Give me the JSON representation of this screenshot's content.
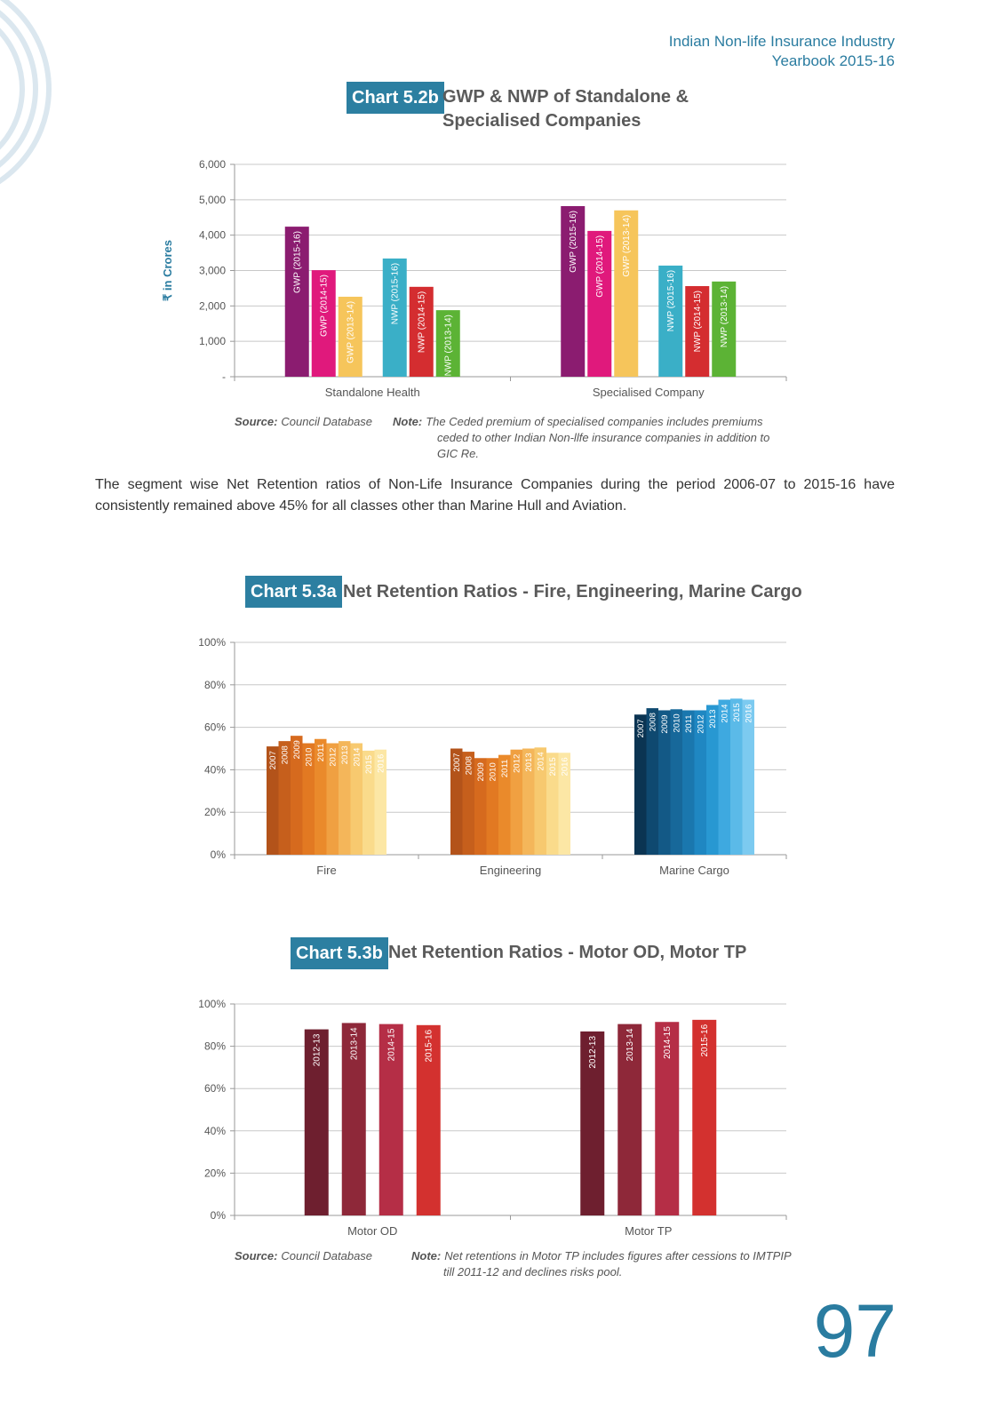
{
  "header": {
    "line1": "Indian Non-life Insurance Industry",
    "line2": "Yearbook 2015-16"
  },
  "paragraph": "The segment wise Net Retention ratios of Non-Life Insurance Companies during the period 2006-07 to 2015-16 have consistently remained above 45% for all classes other than Marine Hull and Aviation.",
  "page_number": "97",
  "chart_data": [
    {
      "type": "bar",
      "label": "Chart 5.2b",
      "title": "GWP & NWP of Standalone & Specialised Companies",
      "ylabel": "₹ in Crores",
      "categories": [
        "Standalone Health",
        "Specialised Company"
      ],
      "series": [
        {
          "name": "GWP (2015-16)",
          "color": "#8b1c70",
          "values": [
            4240,
            4820
          ]
        },
        {
          "name": "GWP (2014-15)",
          "color": "#e0197c",
          "values": [
            3010,
            4120
          ]
        },
        {
          "name": "GWP (2013-14)",
          "color": "#f6c55b",
          "values": [
            2260,
            4700
          ]
        },
        {
          "name": "NWP (2015-16)",
          "color": "#3aafc7",
          "values": [
            3340,
            3140
          ]
        },
        {
          "name": "NWP (2014-15)",
          "color": "#d42d30",
          "values": [
            2540,
            2560
          ]
        },
        {
          "name": "NWP (2013-14)",
          "color": "#5cb335",
          "values": [
            1880,
            2690
          ]
        }
      ],
      "ylim": [
        0,
        6000
      ],
      "yticks": [
        {
          "value": 0,
          "label": "-"
        },
        {
          "value": 1000,
          "label": "1,000"
        },
        {
          "value": 2000,
          "label": "2,000"
        },
        {
          "value": 3000,
          "label": "3,000"
        },
        {
          "value": 4000,
          "label": "4,000"
        },
        {
          "value": 5000,
          "label": "5,000"
        },
        {
          "value": 6000,
          "label": "6,000"
        }
      ],
      "grid": true,
      "source_label": "Source:",
      "source": "Council Database",
      "note_label": "Note:",
      "note": "The Ceded premium of specialised companies includes premiums ceded to other Indian Non-llfe insurance companies in addition to GIC Re."
    },
    {
      "type": "bar",
      "label": "Chart 5.3a",
      "title": "Net Retention Ratios - Fire, Engineering, Marine Cargo",
      "categories": [
        "Fire",
        "Engineering",
        "Marine Cargo"
      ],
      "series": [
        {
          "name": "2007",
          "colors": [
            "#b3531a",
            "#b3531a",
            "#0b3452"
          ],
          "values": [
            51,
            50,
            66
          ]
        },
        {
          "name": "2008",
          "colors": [
            "#c65f1c",
            "#c65f1c",
            "#0f4970"
          ],
          "values": [
            53.5,
            48.5,
            69
          ]
        },
        {
          "name": "2009",
          "colors": [
            "#d66a1e",
            "#d66a1e",
            "#135986"
          ],
          "values": [
            56,
            45.5,
            68
          ]
        },
        {
          "name": "2010",
          "colors": [
            "#e27922",
            "#e27922",
            "#17689a"
          ],
          "values": [
            52.5,
            45.5,
            68.5
          ]
        },
        {
          "name": "2011",
          "colors": [
            "#ea8a2b",
            "#ea8a2b",
            "#1a77ae"
          ],
          "values": [
            54.5,
            47,
            68
          ]
        },
        {
          "name": "2012",
          "colors": [
            "#f0a041",
            "#f0a041",
            "#1f87c2"
          ],
          "values": [
            52.5,
            49.5,
            68
          ]
        },
        {
          "name": "2013",
          "colors": [
            "#f4b65a",
            "#f4b65a",
            "#2898d2"
          ],
          "values": [
            53.5,
            50,
            70.5
          ]
        },
        {
          "name": "2014",
          "colors": [
            "#f7c96f",
            "#f7c96f",
            "#3ea9e0"
          ],
          "values": [
            52.5,
            50.5,
            73
          ]
        },
        {
          "name": "2015",
          "colors": [
            "#fadb8b",
            "#fadb8b",
            "#5bbae8"
          ],
          "values": [
            49,
            48,
            73.5
          ]
        },
        {
          "name": "2016",
          "colors": [
            "#fce7a5",
            "#fce7a5",
            "#7ccaf0"
          ],
          "values": [
            49.5,
            48,
            73
          ]
        }
      ],
      "ylim": [
        0,
        100
      ],
      "yticks": [
        {
          "value": 0,
          "label": "0%"
        },
        {
          "value": 20,
          "label": "20%"
        },
        {
          "value": 40,
          "label": "40%"
        },
        {
          "value": 60,
          "label": "60%"
        },
        {
          "value": 80,
          "label": "80%"
        },
        {
          "value": 100,
          "label": "100%"
        }
      ],
      "grid": true
    },
    {
      "type": "bar",
      "label": "Chart 5.3b",
      "title": "Net Retention Ratios - Motor OD, Motor TP",
      "categories": [
        "Motor OD",
        "Motor TP"
      ],
      "series": [
        {
          "name": "2012-13",
          "color": "#6e1f2f",
          "values": [
            88,
            87
          ]
        },
        {
          "name": "2013-14",
          "color": "#8e2839",
          "values": [
            91,
            90.5
          ]
        },
        {
          "name": "2014-15",
          "color": "#b52e46",
          "values": [
            90.5,
            91.5
          ]
        },
        {
          "name": "2015-16",
          "color": "#d3312f",
          "values": [
            90,
            92.5
          ]
        }
      ],
      "ylim": [
        0,
        100
      ],
      "yticks": [
        {
          "value": 0,
          "label": "0%"
        },
        {
          "value": 20,
          "label": "20%"
        },
        {
          "value": 40,
          "label": "40%"
        },
        {
          "value": 60,
          "label": "60%"
        },
        {
          "value": 80,
          "label": "80%"
        },
        {
          "value": 100,
          "label": "100%"
        }
      ],
      "grid": true,
      "source_label": "Source:",
      "source": "Council Database",
      "note_label": "Note:",
      "note": "Net retentions in Motor TP includes figures after cessions to IMTPIP till 2011-12 and declines risks pool."
    }
  ]
}
